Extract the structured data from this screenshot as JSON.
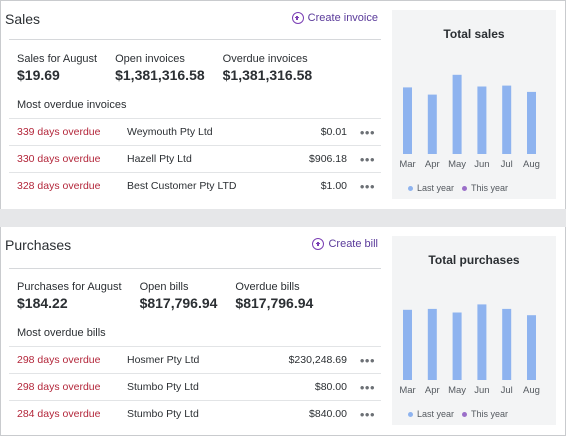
{
  "colors": {
    "overdue": "#b3263a",
    "bar": "#8eb3ef",
    "last_year": "#8eb3ef",
    "this_year": "#9b6fc9",
    "accent": "#7b3fb5"
  },
  "sales": {
    "title": "Sales",
    "create_label": "Create invoice",
    "stats": [
      {
        "label": "Sales for August",
        "value": "$19.69"
      },
      {
        "label": "Open invoices",
        "value": "$1,381,316.58"
      },
      {
        "label": "Overdue invoices",
        "value": "$1,381,316.58"
      }
    ],
    "list_heading": "Most overdue invoices",
    "rows": [
      {
        "overdue": "339 days overdue",
        "contact": "Weymouth Pty Ltd",
        "amount": "$0.01"
      },
      {
        "overdue": "330 days overdue",
        "contact": "Hazell Pty Ltd",
        "amount": "$906.18"
      },
      {
        "overdue": "328 days overdue",
        "contact": "Best Customer Pty LTD",
        "amount": "$1.00"
      }
    ],
    "more_glyph": "•••"
  },
  "purchases": {
    "title": "Purchases",
    "create_label": "Create bill",
    "stats": [
      {
        "label": "Purchases for August",
        "value": "$184.22"
      },
      {
        "label": "Open bills",
        "value": "$817,796.94"
      },
      {
        "label": "Overdue bills",
        "value": "$817,796.94"
      }
    ],
    "list_heading": "Most overdue bills",
    "rows": [
      {
        "overdue": "298 days overdue",
        "contact": "Hosmer Pty Ltd",
        "amount": "$230,248.69"
      },
      {
        "overdue": "298 days overdue",
        "contact": "Stumbo Pty Ltd",
        "amount": "$80.00"
      },
      {
        "overdue": "284 days overdue",
        "contact": "Stumbo Pty Ltd",
        "amount": "$840.00"
      }
    ],
    "more_glyph": "•••"
  },
  "chart_data": [
    {
      "type": "bar",
      "title": "Total sales",
      "categories": [
        "Mar",
        "Apr",
        "May",
        "Jun",
        "Jul",
        "Aug"
      ],
      "series": [
        {
          "name": "Last year",
          "values": [
            74,
            66,
            88,
            75,
            76,
            69
          ]
        }
      ],
      "legend": [
        "Last year",
        "This year"
      ],
      "ylim": [
        0,
        100
      ],
      "grid": false,
      "legend_position": "bottom"
    },
    {
      "type": "bar",
      "title": "Total purchases",
      "categories": [
        "Mar",
        "Apr",
        "May",
        "Jun",
        "Jul",
        "Aug"
      ],
      "series": [
        {
          "name": "Last year",
          "values": [
            78,
            79,
            75,
            84,
            79,
            72
          ]
        }
      ],
      "legend": [
        "Last year",
        "This year"
      ],
      "ylim": [
        0,
        100
      ],
      "grid": false,
      "legend_position": "bottom"
    }
  ]
}
